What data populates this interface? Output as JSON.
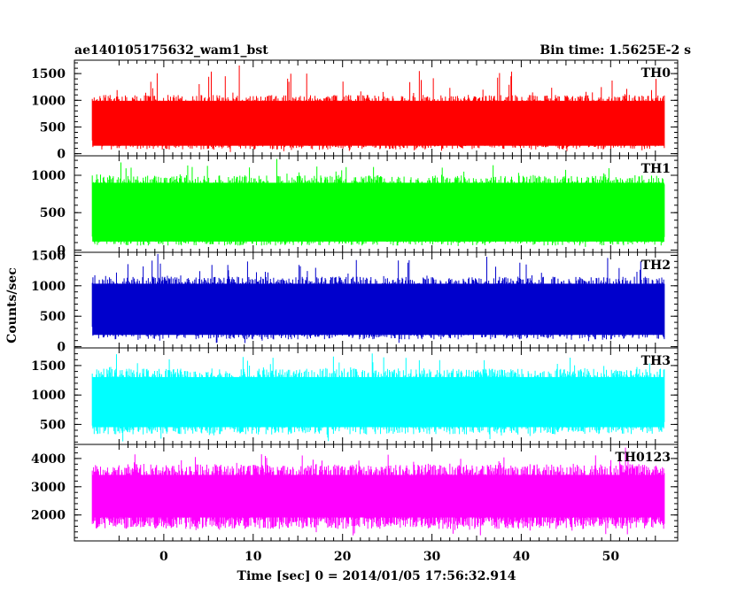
{
  "header": {
    "title": "ae140105175632_wam1_bst",
    "bin_time": "Bin time: 1.5625E-2 s"
  },
  "chart_data": {
    "type": "line",
    "xlabel": "Time [sec] 0 = 2014/01/05 17:56:32.914",
    "ylabel": "Counts/sec",
    "xlim": [
      -10,
      57.5
    ],
    "x_ticks": [
      0,
      10,
      20,
      30,
      40,
      50
    ],
    "data_x_range": [
      -8,
      56
    ],
    "panels": [
      {
        "name": "TH0",
        "color": "#ff0000",
        "ylim": [
          -40,
          1750
        ],
        "y_ticks": [
          0,
          500,
          1000,
          1500
        ],
        "typical_low": 80,
        "typical_high": 1100,
        "min": 20,
        "max": 1720,
        "mean": 600
      },
      {
        "name": "TH1",
        "color": "#00ff00",
        "ylim": [
          -30,
          1260
        ],
        "y_ticks": [
          0,
          500,
          1000
        ],
        "typical_low": 60,
        "typical_high": 1000,
        "min": 20,
        "max": 1240,
        "mean": 480
      },
      {
        "name": "TH2",
        "color": "#0000cc",
        "ylim": [
          -20,
          1550
        ],
        "y_ticks": [
          0,
          500,
          1000,
          1500
        ],
        "typical_low": 120,
        "typical_high": 1150,
        "min": 30,
        "max": 1530,
        "mean": 620
      },
      {
        "name": "TH3",
        "color": "#00ffff",
        "ylim": [
          160,
          1800
        ],
        "y_ticks": [
          500,
          1000,
          1500
        ],
        "typical_low": 330,
        "typical_high": 1450,
        "min": 190,
        "max": 1780,
        "mean": 900
      },
      {
        "name": "TH0123",
        "color": "#ff00ff",
        "ylim": [
          1080,
          4500
        ],
        "y_ticks": [
          2000,
          3000,
          4000
        ],
        "typical_low": 1500,
        "typical_high": 3800,
        "min": 1120,
        "max": 4400,
        "mean": 2600
      }
    ]
  }
}
